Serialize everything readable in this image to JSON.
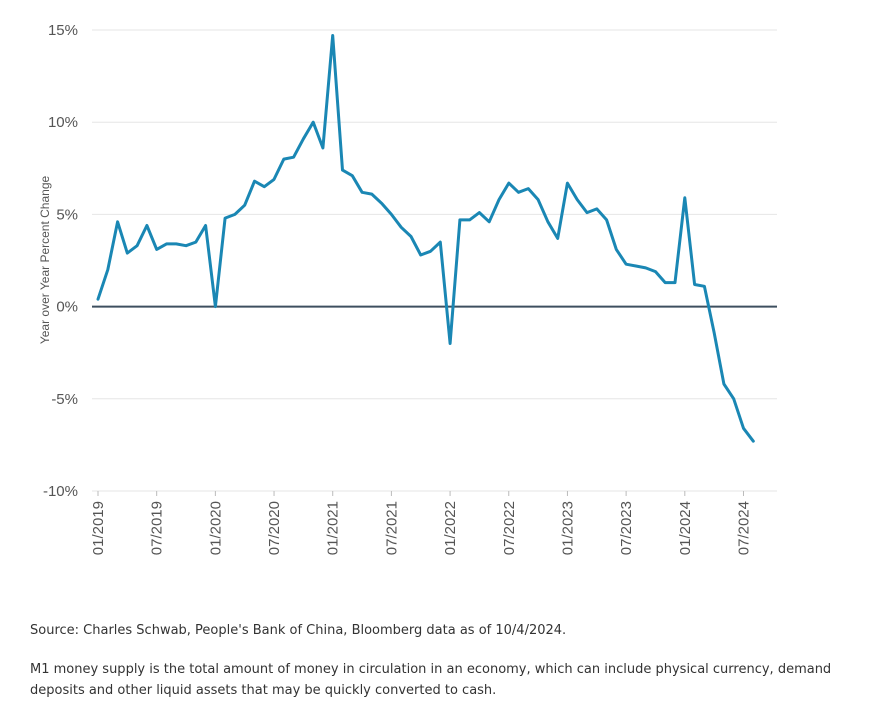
{
  "chart_data": {
    "type": "line",
    "ylabel": "Year over Year Percent Change",
    "xlabel": "",
    "ylim": [
      -10,
      15
    ],
    "y_ticks": [
      {
        "value": 15,
        "label": "15%"
      },
      {
        "value": 10,
        "label": "10%"
      },
      {
        "value": 5,
        "label": "5%"
      },
      {
        "value": 0,
        "label": "0%"
      },
      {
        "value": -5,
        "label": "-5%"
      },
      {
        "value": -10,
        "label": "-10%"
      }
    ],
    "x_ticks": [
      {
        "index": 0,
        "label": "01/2019"
      },
      {
        "index": 6,
        "label": "07/2019"
      },
      {
        "index": 12,
        "label": "01/2020"
      },
      {
        "index": 18,
        "label": "07/2020"
      },
      {
        "index": 24,
        "label": "01/2021"
      },
      {
        "index": 30,
        "label": "07/2021"
      },
      {
        "index": 36,
        "label": "01/2022"
      },
      {
        "index": 42,
        "label": "07/2022"
      },
      {
        "index": 48,
        "label": "01/2023"
      },
      {
        "index": 54,
        "label": "07/2023"
      },
      {
        "index": 60,
        "label": "01/2024"
      },
      {
        "index": 66,
        "label": "07/2024"
      }
    ],
    "grid": true,
    "zero_line": true,
    "line_color": "#1a87b4",
    "series": [
      {
        "values": [
          0.4,
          2.0,
          4.6,
          2.9,
          3.3,
          4.4,
          3.1,
          3.4,
          3.4,
          3.3,
          3.5,
          4.4,
          0.0,
          4.8,
          5.0,
          5.5,
          6.8,
          6.5,
          6.9,
          8.0,
          8.1,
          9.1,
          10.0,
          8.6,
          14.7,
          7.4,
          7.1,
          6.2,
          6.1,
          5.6,
          5.0,
          4.3,
          3.8,
          2.8,
          3.0,
          3.5,
          -2.0,
          4.7,
          4.7,
          5.1,
          4.6,
          5.8,
          6.7,
          6.2,
          6.4,
          5.8,
          4.6,
          3.7,
          6.7,
          5.8,
          5.1,
          5.3,
          4.7,
          3.1,
          2.3,
          2.2,
          2.1,
          1.9,
          1.3,
          1.3,
          5.9,
          1.2,
          1.1,
          -1.4,
          -4.2,
          -5.0,
          -6.6,
          -7.3
        ]
      }
    ]
  },
  "footer": {
    "source": "Source: Charles Schwab, People's Bank of China, Bloomberg data as of 10/4/2024.",
    "description": "M1 money supply is the total amount of money in circulation in an economy, which can include physical currency, demand deposits and other liquid assets that may be quickly converted to cash."
  }
}
